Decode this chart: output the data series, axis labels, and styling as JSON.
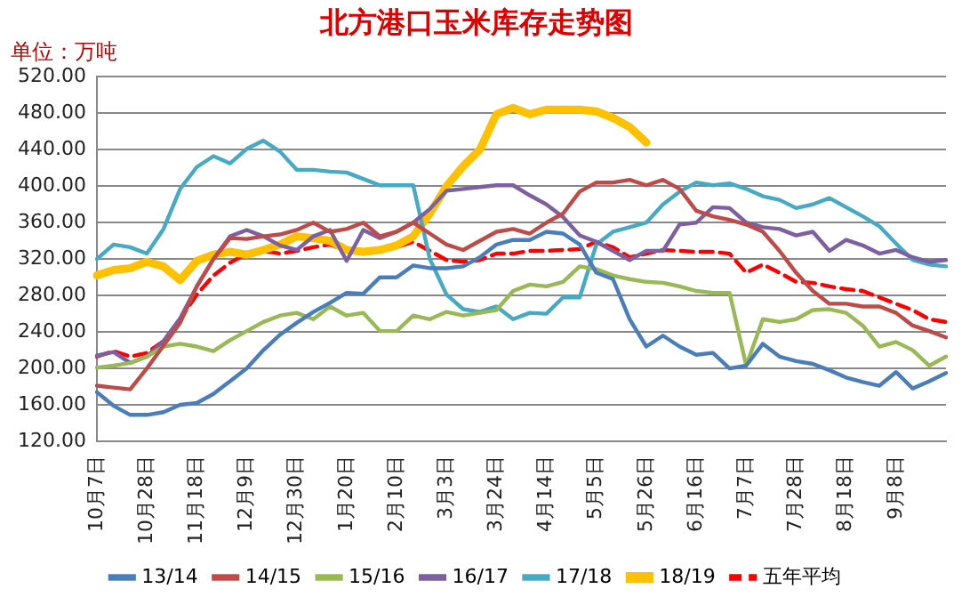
{
  "chart_data": {
    "type": "line",
    "title": "北方港口玉米库存走势图",
    "ylabel": "单位：万吨",
    "categories": [
      "10月7日",
      null,
      null,
      "10月28日",
      null,
      null,
      "11月18日",
      null,
      null,
      "12月9日",
      null,
      null,
      "12月30日",
      null,
      null,
      "1月20日",
      null,
      null,
      "2月10日",
      null,
      null,
      "3月3日",
      null,
      null,
      "3月24日",
      null,
      null,
      "4月14日",
      null,
      null,
      "5月5日",
      null,
      null,
      "5月26日",
      null,
      null,
      "6月16日",
      null,
      null,
      "7月7日",
      null,
      null,
      "7月28日",
      null,
      null,
      "8月18日",
      null,
      null,
      "9月8日",
      null,
      null,
      null
    ],
    "ylim": [
      120,
      520
    ],
    "yticks": [
      {
        "value": 120,
        "label": "120.00"
      },
      {
        "value": 160,
        "label": "160.00"
      },
      {
        "value": 200,
        "label": "200.00"
      },
      {
        "value": 240,
        "label": "240.00"
      },
      {
        "value": 280,
        "label": "280.00"
      },
      {
        "value": 320,
        "label": "320.00"
      },
      {
        "value": 360,
        "label": "360.00"
      },
      {
        "value": 400,
        "label": "400.00"
      },
      {
        "value": 440,
        "label": "440.00"
      },
      {
        "value": 480,
        "label": "480.00"
      },
      {
        "value": 520,
        "label": "520.00"
      }
    ],
    "grid": "y",
    "legend": "bottom",
    "marker": "none",
    "series": [
      {
        "name": "13/14",
        "color": "#4a7ebb",
        "values": [
          174,
          159,
          149,
          149,
          152,
          160,
          162,
          172,
          186,
          200,
          220,
          237,
          250,
          262,
          272,
          283,
          282,
          300,
          300,
          313,
          310,
          310,
          312,
          322,
          336,
          341,
          341,
          350,
          348,
          336,
          305,
          298,
          254,
          224,
          236,
          224,
          215,
          217,
          200,
          203,
          227,
          213,
          208,
          205,
          198,
          190,
          185,
          181,
          196,
          178,
          186,
          195
        ]
      },
      {
        "name": "14/15",
        "color": "#be4b48",
        "values": [
          181,
          179,
          177,
          200,
          225,
          250,
          290,
          320,
          343,
          342,
          345,
          347,
          352,
          360,
          350,
          353,
          360,
          345,
          350,
          360,
          348,
          336,
          330,
          340,
          350,
          353,
          348,
          360,
          370,
          394,
          404,
          404,
          407,
          401,
          407,
          397,
          373,
          367,
          363,
          358,
          350,
          329,
          305,
          285,
          271,
          271,
          268,
          268,
          261,
          247,
          241,
          234
        ]
      },
      {
        "name": "15/16",
        "color": "#98b954",
        "values": [
          201,
          203,
          206,
          213,
          224,
          227,
          224,
          219,
          231,
          241,
          251,
          258,
          261,
          254,
          268,
          258,
          261,
          241,
          241,
          258,
          254,
          262,
          258,
          261,
          264,
          285,
          292,
          290,
          295,
          312,
          309,
          302,
          298,
          295,
          294,
          290,
          285,
          283,
          283,
          203,
          254,
          251,
          254,
          264,
          265,
          261,
          247,
          224,
          229,
          220,
          203,
          213
        ]
      },
      {
        "name": "16/17",
        "color": "#7d60a0",
        "values": [
          214,
          218,
          206,
          213,
          230,
          255,
          290,
          320,
          345,
          352,
          345,
          335,
          330,
          345,
          352,
          318,
          352,
          343,
          350,
          360,
          375,
          395,
          397,
          399,
          401,
          401,
          390,
          380,
          366,
          346,
          339,
          329,
          319,
          329,
          329,
          358,
          360,
          377,
          376,
          360,
          355,
          353,
          346,
          350,
          329,
          341,
          335,
          326,
          330,
          322,
          317,
          319
        ]
      },
      {
        "name": "17/18",
        "color": "#46aac5",
        "values": [
          320,
          336,
          333,
          326,
          353,
          397,
          421,
          433,
          425,
          441,
          450,
          438,
          418,
          418,
          416,
          415,
          408,
          401,
          401,
          401,
          320,
          281,
          265,
          262,
          268,
          254,
          261,
          260,
          278,
          278,
          336,
          350,
          355,
          360,
          380,
          394,
          404,
          401,
          403,
          397,
          389,
          385,
          376,
          380,
          387,
          377,
          367,
          356,
          337,
          319,
          314,
          312
        ]
      },
      {
        "name": "18/19",
        "color": "#ffc000",
        "values": [
          302,
          308,
          310,
          317,
          312,
          297,
          318,
          325,
          328,
          325,
          330,
          336,
          345,
          343,
          340,
          330,
          328,
          330,
          335,
          345,
          370,
          400,
          422,
          440,
          479,
          486,
          479,
          484,
          484,
          484,
          482,
          475,
          465,
          448,
          null,
          null,
          null,
          null,
          null,
          null,
          null,
          null,
          null,
          null,
          null,
          null,
          null,
          null,
          null,
          null,
          null,
          null
        ]
      },
      {
        "name": "五年平均",
        "color": "#ff0000",
        "line_style": "dashed",
        "values": [
          213,
          219,
          213,
          217,
          230,
          254,
          281,
          302,
          316,
          326,
          329,
          326,
          329,
          333,
          336,
          329,
          326,
          329,
          333,
          339,
          329,
          319,
          317,
          319,
          326,
          326,
          329,
          329,
          330,
          331,
          339,
          333,
          322,
          326,
          330,
          329,
          328,
          328,
          326,
          305,
          314,
          305,
          295,
          294,
          290,
          287,
          285,
          278,
          271,
          264,
          254,
          251
        ]
      }
    ]
  }
}
